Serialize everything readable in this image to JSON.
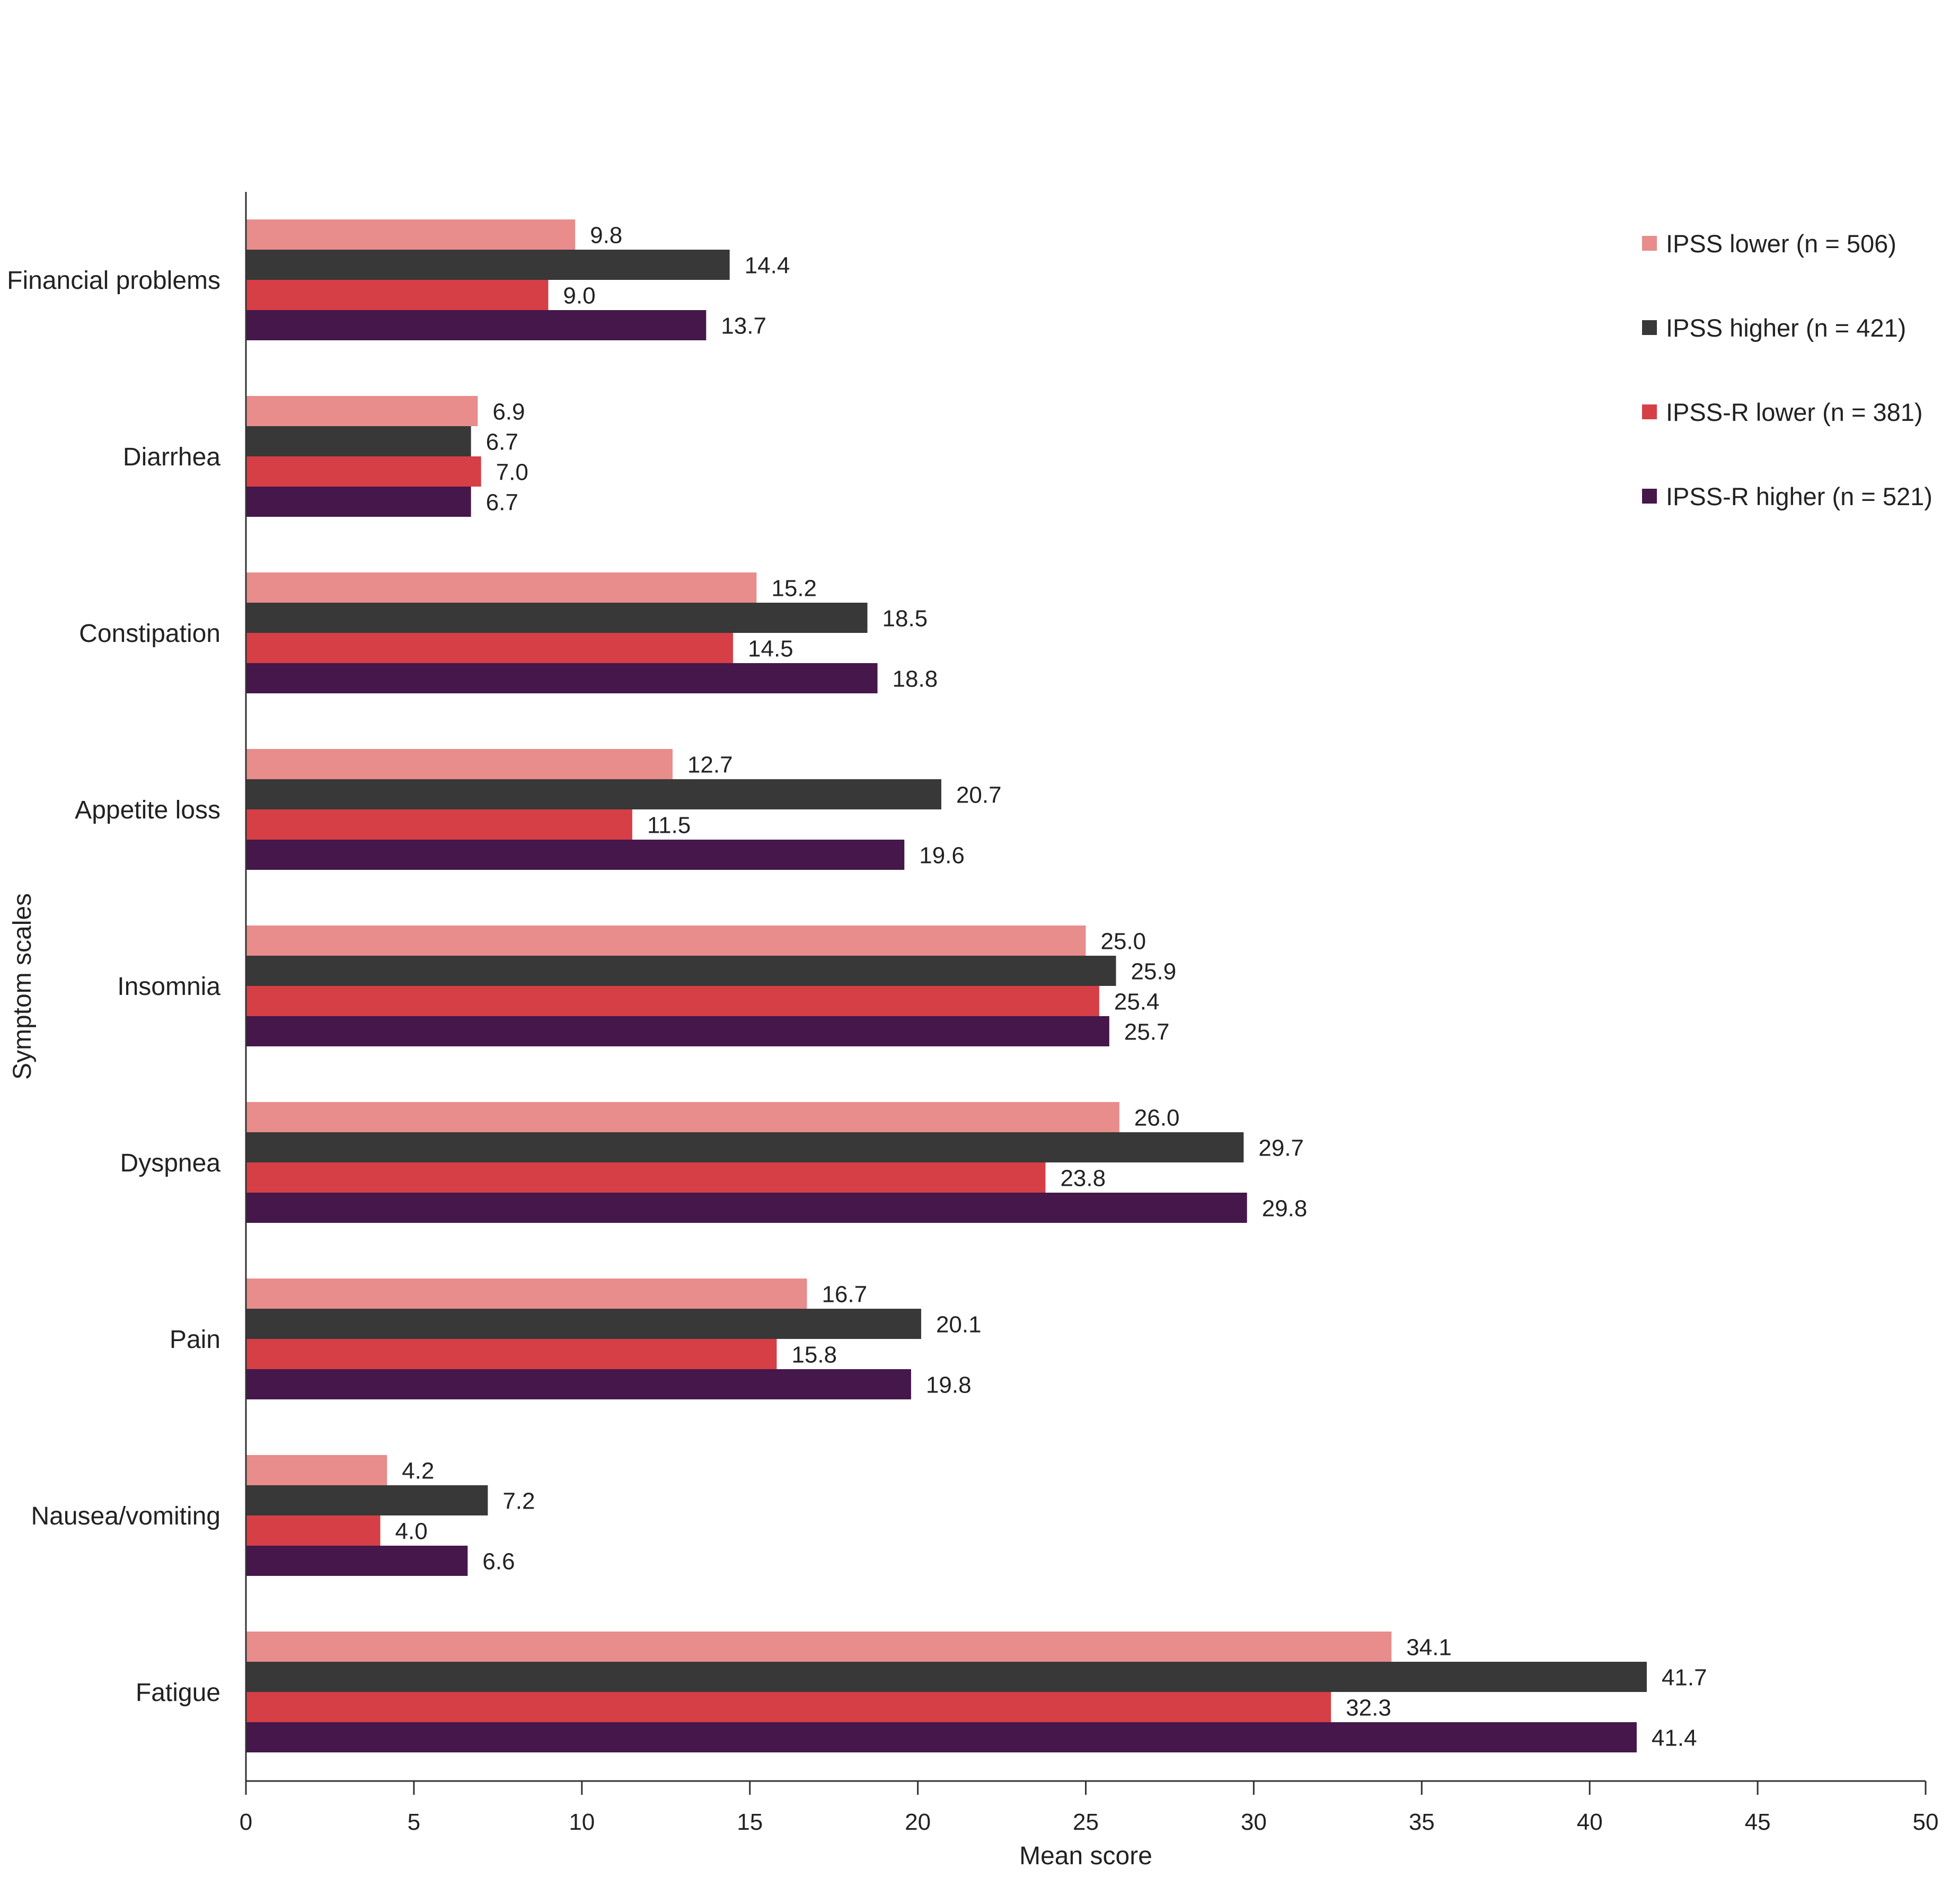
{
  "chart_data": {
    "type": "bar",
    "orientation": "horizontal",
    "xlabel": "Mean score",
    "ylabel": "Symptom scales",
    "xlim": [
      0,
      50
    ],
    "xticks": [
      0,
      5,
      10,
      15,
      20,
      25,
      30,
      35,
      40,
      45,
      50
    ],
    "grid": false,
    "legend_position": "top-right",
    "categories": [
      "Financial problems",
      "Diarrhea",
      "Constipation",
      "Appetite loss",
      "Insomnia",
      "Dyspnea",
      "Pain",
      "Nausea/vomiting",
      "Fatigue"
    ],
    "series": [
      {
        "name": "IPSS lower (n = 506)",
        "color": "#e88c8c",
        "values": [
          9.8,
          6.9,
          15.2,
          12.7,
          25.0,
          26.0,
          16.7,
          4.2,
          34.1
        ]
      },
      {
        "name": "IPSS higher (n = 421)",
        "color": "#383838",
        "values": [
          14.4,
          6.7,
          18.5,
          20.7,
          25.9,
          29.7,
          20.1,
          7.2,
          41.7
        ]
      },
      {
        "name": "IPSS-R lower (n = 381)",
        "color": "#d63f45",
        "values": [
          9.0,
          7.0,
          14.5,
          11.5,
          25.4,
          23.8,
          15.8,
          4.0,
          32.3
        ]
      },
      {
        "name": "IPSS-R higher (n = 521)",
        "color": "#45174a",
        "values": [
          13.7,
          6.7,
          18.8,
          19.6,
          25.7,
          29.8,
          19.8,
          6.6,
          41.4
        ]
      }
    ]
  }
}
